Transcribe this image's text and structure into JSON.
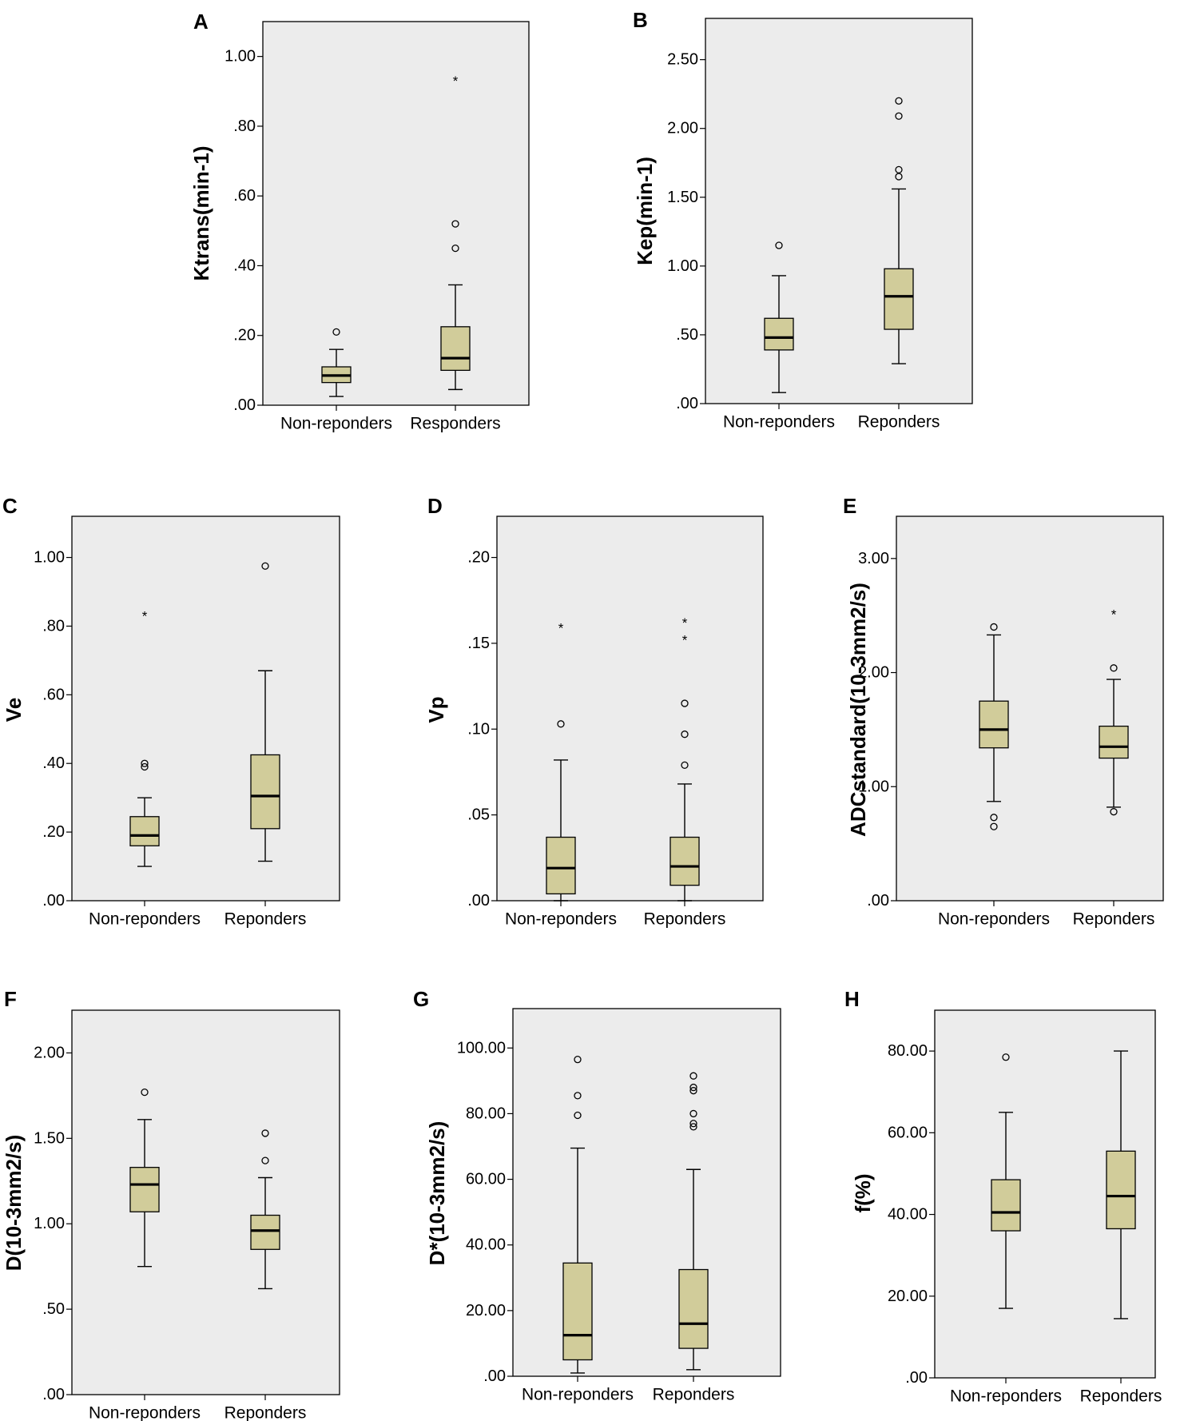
{
  "chart_data": [
    {
      "type": "box",
      "panel": "A",
      "ylabel": "Ktrans(min-1)",
      "ylim": [
        0,
        1.1
      ],
      "yticks": [
        {
          "v": 0,
          "label": ".00"
        },
        {
          "v": 0.2,
          "label": ".20"
        },
        {
          "v": 0.4,
          "label": ".40"
        },
        {
          "v": 0.6,
          "label": ".60"
        },
        {
          "v": 0.8,
          "label": ".80"
        },
        {
          "v": 1.0,
          "label": "1.00"
        }
      ],
      "groups": [
        {
          "name": "Non-reponders",
          "whisker_low": 0.025,
          "q1": 0.065,
          "median": 0.085,
          "q3": 0.11,
          "whisker_high": 0.16,
          "outliers": [
            0.21
          ],
          "extremes": []
        },
        {
          "name": "Responders",
          "whisker_low": 0.045,
          "q1": 0.1,
          "median": 0.135,
          "q3": 0.225,
          "whisker_high": 0.345,
          "outliers": [
            0.45,
            0.52
          ],
          "extremes": [
            0.93
          ]
        }
      ]
    },
    {
      "type": "box",
      "panel": "B",
      "ylabel": "Kep(min-1)",
      "ylim": [
        0,
        2.8
      ],
      "yticks": [
        {
          "v": 0,
          "label": ".00"
        },
        {
          "v": 0.5,
          "label": ".50"
        },
        {
          "v": 1.0,
          "label": "1.00"
        },
        {
          "v": 1.5,
          "label": "1.50"
        },
        {
          "v": 2.0,
          "label": "2.00"
        },
        {
          "v": 2.5,
          "label": "2.50"
        }
      ],
      "groups": [
        {
          "name": "Non-reponders",
          "whisker_low": 0.08,
          "q1": 0.39,
          "median": 0.48,
          "q3": 0.62,
          "whisker_high": 0.93,
          "outliers": [
            1.15
          ],
          "extremes": []
        },
        {
          "name": "Reponders",
          "whisker_low": 0.29,
          "q1": 0.54,
          "median": 0.78,
          "q3": 0.98,
          "whisker_high": 1.56,
          "outliers": [
            1.65,
            1.7,
            2.09,
            2.2
          ],
          "extremes": []
        }
      ]
    },
    {
      "type": "box",
      "panel": "C",
      "ylabel": "Ve",
      "ylim": [
        0,
        1.12
      ],
      "yticks": [
        {
          "v": 0,
          "label": ".00"
        },
        {
          "v": 0.2,
          "label": ".20"
        },
        {
          "v": 0.4,
          "label": ".40"
        },
        {
          "v": 0.6,
          "label": ".60"
        },
        {
          "v": 0.8,
          "label": ".80"
        },
        {
          "v": 1.0,
          "label": "1.00"
        }
      ],
      "groups": [
        {
          "name": "Non-reponders",
          "whisker_low": 0.1,
          "q1": 0.16,
          "median": 0.19,
          "q3": 0.245,
          "whisker_high": 0.3,
          "outliers": [
            0.39,
            0.4
          ],
          "extremes": [
            0.83
          ]
        },
        {
          "name": "Reponders",
          "whisker_low": 0.115,
          "q1": 0.21,
          "median": 0.305,
          "q3": 0.425,
          "whisker_high": 0.67,
          "outliers": [
            0.975
          ],
          "extremes": []
        }
      ]
    },
    {
      "type": "box",
      "panel": "D",
      "ylabel": "Vp",
      "ylim": [
        0,
        0.224
      ],
      "yticks": [
        {
          "v": 0,
          "label": ".00"
        },
        {
          "v": 0.05,
          "label": ".05"
        },
        {
          "v": 0.1,
          "label": ".10"
        },
        {
          "v": 0.15,
          "label": ".15"
        },
        {
          "v": 0.2,
          "label": ".20"
        }
      ],
      "groups": [
        {
          "name": "Non-reponders",
          "whisker_low": 0.0,
          "q1": 0.004,
          "median": 0.019,
          "q3": 0.037,
          "whisker_high": 0.082,
          "outliers": [
            0.103
          ],
          "extremes": [
            0.159
          ]
        },
        {
          "name": "Reponders",
          "whisker_low": 0.0,
          "q1": 0.009,
          "median": 0.02,
          "q3": 0.037,
          "whisker_high": 0.068,
          "outliers": [
            0.079,
            0.097,
            0.115
          ],
          "extremes": [
            0.152,
            0.162
          ]
        }
      ]
    },
    {
      "type": "box",
      "panel": "E",
      "ylabel": "ADCstandard(10-3mm2/s)",
      "ylim": [
        0,
        3.37
      ],
      "yticks": [
        {
          "v": 0,
          "label": ".00"
        },
        {
          "v": 1.0,
          "label": "1.00"
        },
        {
          "v": 2.0,
          "label": "2.00"
        },
        {
          "v": 3.0,
          "label": "3.00"
        }
      ],
      "groups": [
        {
          "name": "Non-reponders",
          "whisker_low": 0.87,
          "q1": 1.34,
          "median": 1.5,
          "q3": 1.75,
          "whisker_high": 2.33,
          "outliers": [
            0.65,
            0.73,
            2.4
          ],
          "extremes": []
        },
        {
          "name": "Reponders",
          "whisker_low": 0.82,
          "q1": 1.25,
          "median": 1.35,
          "q3": 1.53,
          "whisker_high": 1.94,
          "outliers": [
            0.78,
            2.04
          ],
          "extremes": [
            2.51
          ]
        }
      ]
    },
    {
      "type": "box",
      "panel": "F",
      "ylabel": "D(10-3mm2/s)",
      "ylim": [
        0,
        2.25
      ],
      "yticks": [
        {
          "v": 0,
          "label": ".00"
        },
        {
          "v": 0.5,
          "label": ".50"
        },
        {
          "v": 1.0,
          "label": "1.00"
        },
        {
          "v": 1.5,
          "label": "1.50"
        },
        {
          "v": 2.0,
          "label": "2.00"
        }
      ],
      "groups": [
        {
          "name": "Non-reponders",
          "whisker_low": 0.75,
          "q1": 1.07,
          "median": 1.23,
          "q3": 1.33,
          "whisker_high": 1.61,
          "outliers": [
            1.77
          ],
          "extremes": []
        },
        {
          "name": "Reponders",
          "whisker_low": 0.62,
          "q1": 0.85,
          "median": 0.96,
          "q3": 1.05,
          "whisker_high": 1.27,
          "outliers": [
            1.37,
            1.53
          ],
          "extremes": []
        }
      ]
    },
    {
      "type": "box",
      "panel": "G",
      "ylabel": "D*(10-3mm2/s)",
      "ylim": [
        0,
        112
      ],
      "yticks": [
        {
          "v": 0,
          "label": ".00"
        },
        {
          "v": 20,
          "label": "20.00"
        },
        {
          "v": 40,
          "label": "40.00"
        },
        {
          "v": 60,
          "label": "60.00"
        },
        {
          "v": 80,
          "label": "80.00"
        },
        {
          "v": 100,
          "label": "100.00"
        }
      ],
      "groups": [
        {
          "name": "Non-reponders",
          "whisker_low": 1.0,
          "q1": 5.0,
          "median": 12.5,
          "q3": 34.5,
          "whisker_high": 69.5,
          "outliers": [
            79.5,
            85.5,
            96.5
          ],
          "extremes": []
        },
        {
          "name": "Reponders",
          "whisker_low": 2.0,
          "q1": 8.5,
          "median": 16.0,
          "q3": 32.5,
          "whisker_high": 63.0,
          "outliers": [
            76.0,
            77.0,
            80.0,
            87.0,
            88.0,
            91.5
          ],
          "extremes": []
        }
      ]
    },
    {
      "type": "box",
      "panel": "H",
      "ylabel": "f(%)",
      "ylim": [
        0,
        90
      ],
      "yticks": [
        {
          "v": 0,
          "label": ".00"
        },
        {
          "v": 20,
          "label": "20.00"
        },
        {
          "v": 40,
          "label": "40.00"
        },
        {
          "v": 60,
          "label": "60.00"
        },
        {
          "v": 80,
          "label": "80.00"
        }
      ],
      "groups": [
        {
          "name": "Non-reponders",
          "whisker_low": 17.0,
          "q1": 36.0,
          "median": 40.5,
          "q3": 48.5,
          "whisker_high": 65.0,
          "outliers": [
            78.5
          ],
          "extremes": []
        },
        {
          "name": "Reponders",
          "whisker_low": 14.5,
          "q1": 36.5,
          "median": 44.5,
          "q3": 55.5,
          "whisker_high": 80.0,
          "outliers": [],
          "extremes": []
        }
      ]
    }
  ]
}
